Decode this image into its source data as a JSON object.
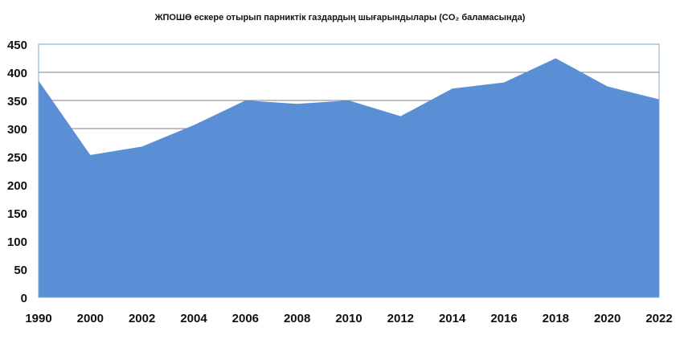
{
  "chart_data": {
    "type": "area",
    "title": "ЖПОШӨ ескере отырып парниктік газдардың шығарындылары (CO₂ баламасында)",
    "xlabel": "",
    "ylabel": "",
    "categories": [
      "1990",
      "2000",
      "2002",
      "2004",
      "2006",
      "2008",
      "2010",
      "2012",
      "2014",
      "2016",
      "2018",
      "2020",
      "2022"
    ],
    "values": [
      385,
      253,
      268,
      306,
      350,
      344,
      350,
      322,
      371,
      382,
      425,
      375,
      352
    ],
    "ylim": [
      0,
      450
    ],
    "yticks": [
      0,
      50,
      100,
      150,
      200,
      250,
      300,
      350,
      400,
      450
    ],
    "grid": true,
    "legend": "none",
    "colors": {
      "area": "#5a8fd6",
      "grid": "#7f7f7f",
      "plot_border": "#7fa7c9"
    }
  }
}
